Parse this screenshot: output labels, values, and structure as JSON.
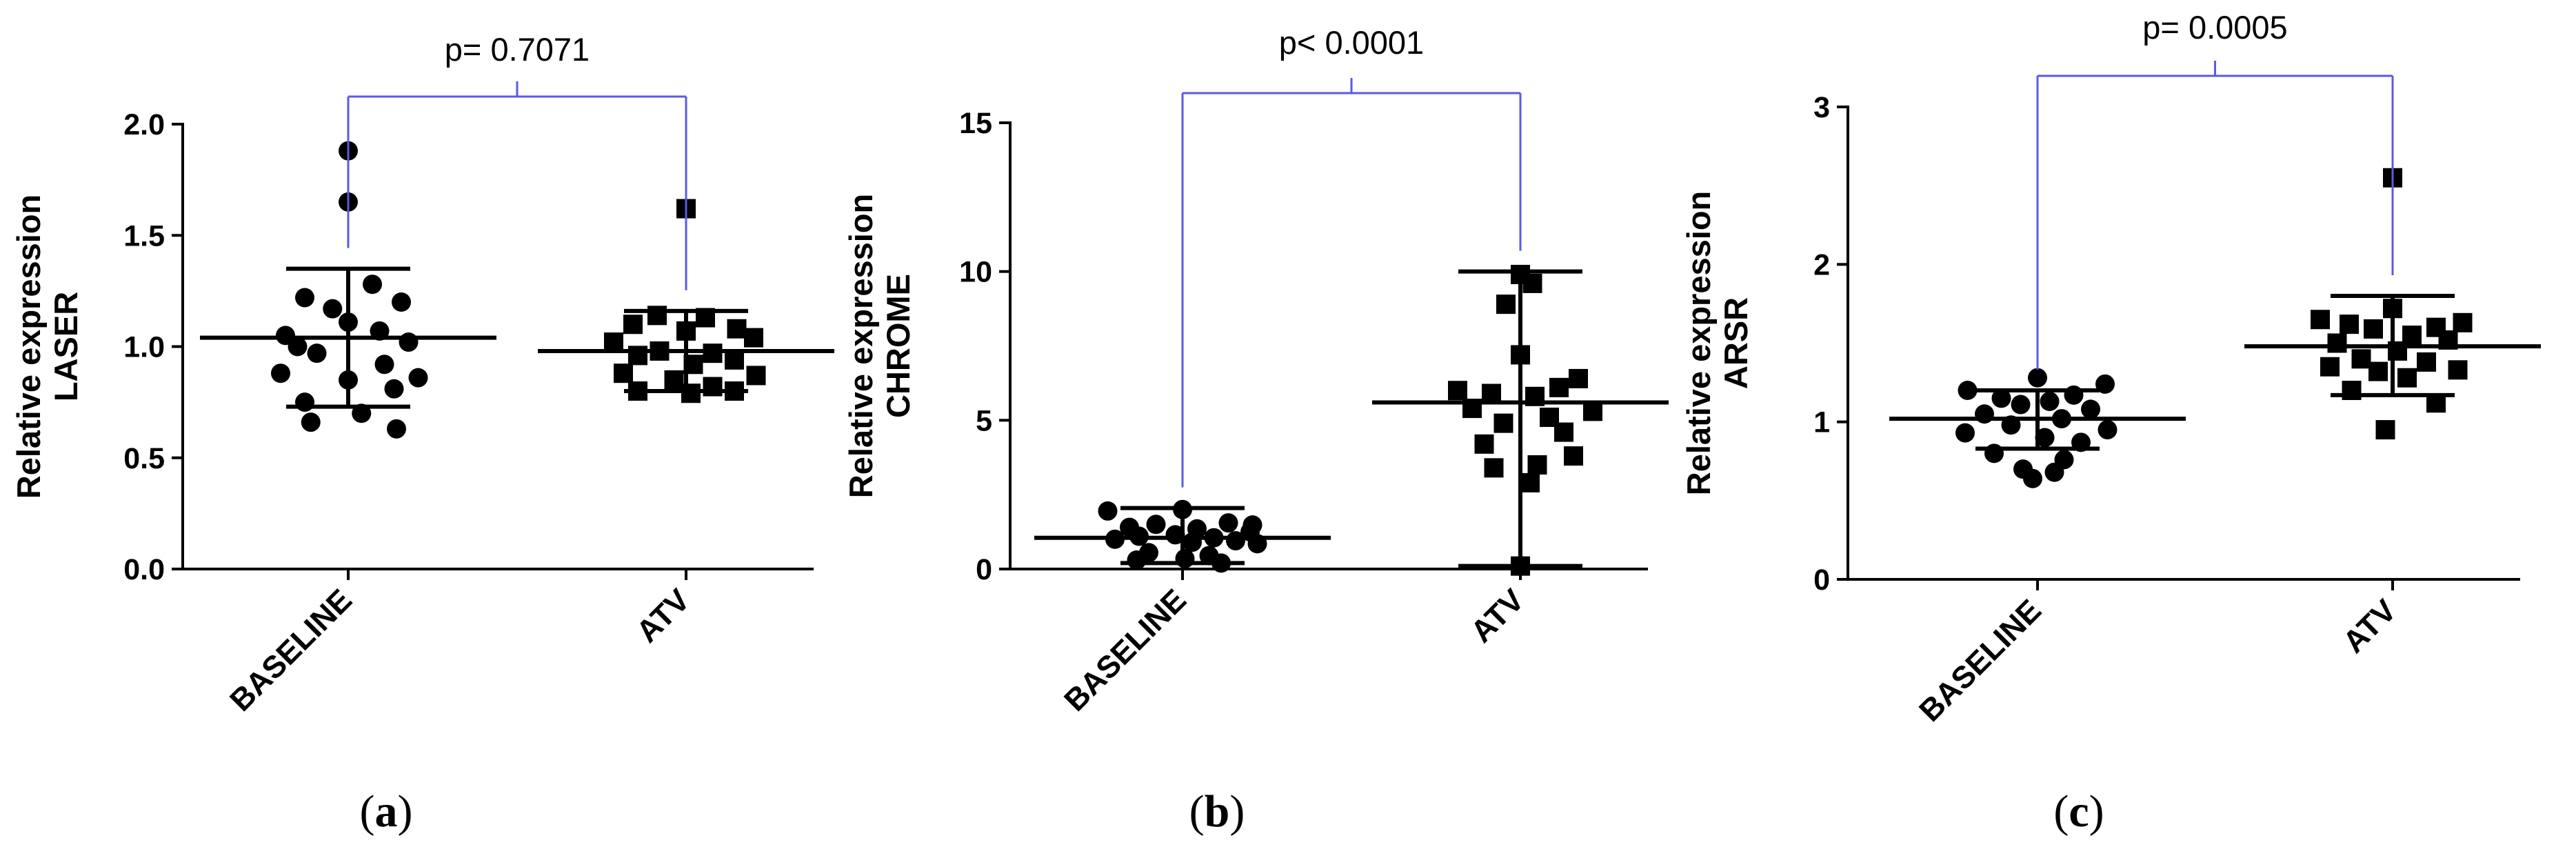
{
  "chart_data": [
    {
      "id": "a",
      "type": "scatter",
      "panel_label": "(a)",
      "panel_letter": "a",
      "ylabel_line1": "Relative expression",
      "ylabel_line2": "LASER",
      "ylim": [
        0,
        2.0
      ],
      "yticks": [
        0,
        0.5,
        1.0,
        1.5,
        2.0
      ],
      "ytick_labels": [
        "0.0",
        "0.5",
        "1.0",
        "1.5",
        "2.0"
      ],
      "categories": [
        "BASELINE",
        "ATV"
      ],
      "p_text": "p= 0.7071",
      "series": [
        {
          "name": "BASELINE",
          "marker": "circle",
          "mean": 1.04,
          "sd_low": 0.73,
          "sd_high": 1.35,
          "values": [
            1.88,
            1.65,
            1.28,
            1.22,
            1.2,
            1.17,
            1.11,
            1.07,
            1.05,
            1.02,
            1.0,
            0.97,
            0.92,
            0.88,
            0.86,
            0.85,
            0.81,
            0.75,
            0.7,
            0.66,
            0.63
          ],
          "offsets": [
            0.0,
            0.0,
            0.2,
            -0.36,
            0.44,
            -0.13,
            0.0,
            0.26,
            -0.52,
            0.5,
            -0.42,
            -0.26,
            0.3,
            -0.56,
            0.58,
            0.0,
            0.38,
            -0.36,
            0.11,
            -0.31,
            0.4
          ]
        },
        {
          "name": "ATV",
          "marker": "square",
          "mean": 0.98,
          "sd_low": 0.8,
          "sd_high": 1.16,
          "values": [
            1.62,
            1.14,
            1.13,
            1.1,
            1.08,
            1.07,
            1.04,
            1.02,
            0.98,
            0.97,
            0.96,
            0.94,
            0.92,
            0.88,
            0.87,
            0.85,
            0.82,
            0.8,
            0.8,
            0.79
          ],
          "offsets": [
            0.0,
            -0.24,
            0.16,
            -0.44,
            0.42,
            0.0,
            0.56,
            -0.6,
            -0.22,
            0.22,
            -0.4,
            0.4,
            0.06,
            -0.52,
            0.58,
            -0.1,
            0.22,
            -0.4,
            0.4,
            0.04
          ]
        }
      ]
    },
    {
      "id": "b",
      "type": "scatter",
      "panel_label": "(b)",
      "panel_letter": "b",
      "ylabel_line1": "Relative expression",
      "ylabel_line2": "CHROME",
      "ylim": [
        0,
        15
      ],
      "yticks": [
        0,
        5,
        10,
        15
      ],
      "ytick_labels": [
        "0",
        "5",
        "10",
        "15"
      ],
      "categories": [
        "BASELINE",
        "ATV"
      ],
      "p_text": "p< 0.0001",
      "series": [
        {
          "name": "BASELINE",
          "marker": "circle",
          "mean": 1.05,
          "sd_low": 0.2,
          "sd_high": 2.05,
          "values": [
            2.0,
            1.95,
            1.55,
            1.5,
            1.48,
            1.4,
            1.35,
            1.25,
            1.15,
            1.1,
            1.05,
            1.0,
            0.95,
            0.9,
            0.85,
            0.55,
            0.45,
            0.35,
            0.3,
            0.2
          ],
          "offsets": [
            0.0,
            -0.62,
            0.38,
            -0.22,
            0.58,
            -0.44,
            0.12,
            0.56,
            -0.06,
            -0.36,
            0.26,
            -0.56,
            0.44,
            0.08,
            0.62,
            -0.28,
            0.22,
            0.02,
            -0.38,
            0.32
          ]
        },
        {
          "name": "ATV",
          "marker": "square",
          "mean": 5.6,
          "sd_low": 0.1,
          "sd_high": 10.0,
          "values": [
            9.9,
            9.6,
            8.9,
            7.2,
            6.4,
            6.1,
            6.0,
            5.9,
            5.8,
            5.4,
            5.3,
            5.1,
            4.9,
            4.6,
            4.2,
            3.8,
            3.5,
            3.4,
            2.9,
            0.1
          ],
          "offsets": [
            0.0,
            0.1,
            -0.12,
            0.0,
            0.48,
            0.32,
            -0.52,
            -0.24,
            0.12,
            -0.4,
            0.6,
            0.24,
            -0.14,
            0.36,
            -0.3,
            0.44,
            0.14,
            -0.22,
            0.08,
            0.0
          ]
        }
      ]
    },
    {
      "id": "c",
      "type": "scatter",
      "panel_label": "(c)",
      "panel_letter": "c",
      "ylabel_line1": "Relative expression",
      "ylabel_line2": "ARSR",
      "ylim": [
        0,
        3
      ],
      "yticks": [
        0,
        1,
        2,
        3
      ],
      "ytick_labels": [
        "0",
        "1",
        "2",
        "3"
      ],
      "categories": [
        "BASELINE",
        "ATV"
      ],
      "p_text": "p= 0.0005",
      "series": [
        {
          "name": "BASELINE",
          "marker": "circle",
          "mean": 1.02,
          "sd_low": 0.83,
          "sd_high": 1.2,
          "values": [
            1.28,
            1.24,
            1.2,
            1.17,
            1.15,
            1.13,
            1.11,
            1.08,
            1.05,
            1.02,
            0.98,
            0.95,
            0.93,
            0.9,
            0.87,
            0.8,
            0.76,
            0.7,
            0.68,
            0.64
          ],
          "offsets": [
            0.0,
            0.56,
            -0.58,
            0.3,
            -0.3,
            0.1,
            -0.14,
            0.44,
            -0.44,
            0.2,
            -0.22,
            0.58,
            -0.6,
            0.06,
            0.36,
            -0.36,
            0.22,
            -0.12,
            0.14,
            -0.04
          ]
        },
        {
          "name": "ATV",
          "marker": "square",
          "mean": 1.48,
          "sd_low": 1.17,
          "sd_high": 1.8,
          "values": [
            2.55,
            1.72,
            1.65,
            1.63,
            1.62,
            1.6,
            1.59,
            1.55,
            1.52,
            1.5,
            1.45,
            1.4,
            1.38,
            1.35,
            1.33,
            1.32,
            1.28,
            1.2,
            1.12,
            0.95
          ],
          "offsets": [
            0.0,
            0.0,
            -0.6,
            0.58,
            -0.36,
            0.36,
            -0.16,
            0.16,
            0.46,
            -0.46,
            0.04,
            -0.26,
            0.28,
            -0.52,
            0.54,
            -0.12,
            0.12,
            -0.34,
            0.36,
            -0.06
          ]
        }
      ]
    }
  ]
}
